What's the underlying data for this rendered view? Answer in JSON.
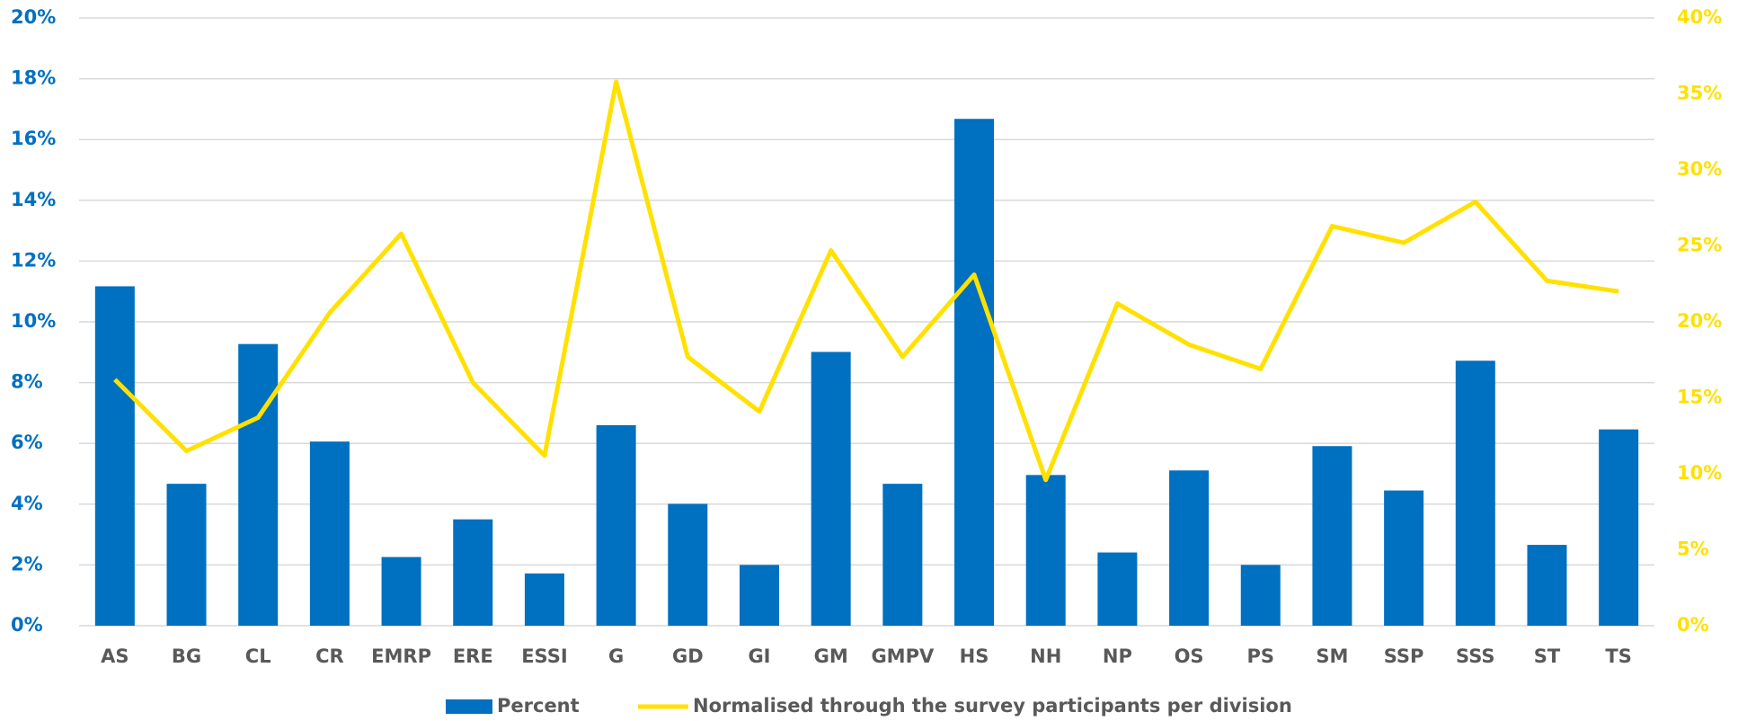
{
  "chart_data": {
    "type": "bar",
    "categories": [
      "AS",
      "BG",
      "CL",
      "CR",
      "EMRP",
      "ERE",
      "ESSI",
      "G",
      "GD",
      "GI",
      "GM",
      "GMPV",
      "HS",
      "NH",
      "NP",
      "OS",
      "PS",
      "SM",
      "SSP",
      "SSS",
      "ST",
      "TS"
    ],
    "series": [
      {
        "name": "Percent",
        "type": "bar",
        "color": "#0070c0",
        "axis": "y",
        "values": [
          11.17,
          4.67,
          9.27,
          6.06,
          2.26,
          3.5,
          1.72,
          6.6,
          4.01,
          2.0,
          9.01,
          4.67,
          16.68,
          4.96,
          2.41,
          5.11,
          2.0,
          5.91,
          4.45,
          8.72,
          2.66,
          6.46
        ]
      },
      {
        "name": "Normalised through the survey participants per division",
        "type": "line",
        "color": "#ffe100",
        "axis": "y2",
        "values": [
          16.2,
          11.5,
          13.7,
          20.6,
          25.8,
          16.0,
          11.2,
          35.8,
          17.7,
          14.1,
          24.7,
          17.7,
          23.1,
          9.6,
          21.2,
          18.5,
          16.9,
          26.3,
          25.2,
          27.9,
          22.7,
          22.0
        ]
      }
    ],
    "ylim": [
      0,
      20
    ],
    "yticks": [
      {
        "value": 0,
        "label": "0%"
      },
      {
        "value": 2,
        "label": "2%"
      },
      {
        "value": 4,
        "label": "4%"
      },
      {
        "value": 6,
        "label": "6%"
      },
      {
        "value": 8,
        "label": "8%"
      },
      {
        "value": 10,
        "label": "10%"
      },
      {
        "value": 12,
        "label": "12%"
      },
      {
        "value": 14,
        "label": "14%"
      },
      {
        "value": 16,
        "label": "16%"
      },
      {
        "value": 18,
        "label": "18%"
      },
      {
        "value": 20,
        "label": "20%"
      }
    ],
    "y2lim": [
      0,
      40
    ],
    "y2ticks": [
      {
        "value": 0,
        "label": "0%"
      },
      {
        "value": 5,
        "label": "5%"
      },
      {
        "value": 10,
        "label": "10%"
      },
      {
        "value": 15,
        "label": "15%"
      },
      {
        "value": 20,
        "label": "20%"
      },
      {
        "value": 25,
        "label": "25%"
      },
      {
        "value": 30,
        "label": "30%"
      },
      {
        "value": 35,
        "label": "35%"
      },
      {
        "value": 40,
        "label": "40%"
      }
    ],
    "grid": true,
    "legend": "bottom"
  }
}
